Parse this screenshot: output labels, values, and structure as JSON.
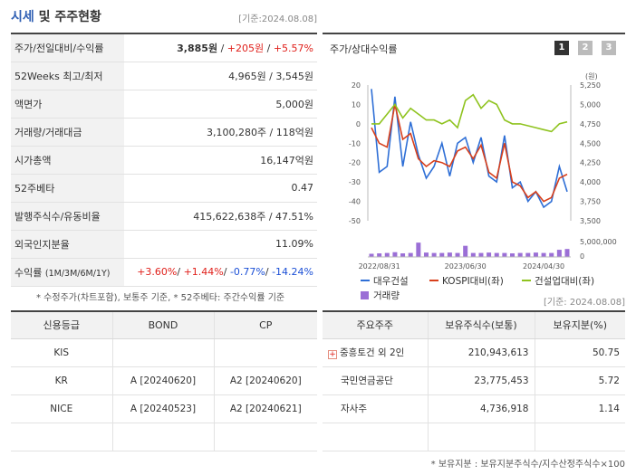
{
  "header": {
    "title_accent": "시세",
    "title_rest": " 및 주주현황",
    "base_date": "[기준:2024.08.08]"
  },
  "quote": {
    "price_label": "주가/전일대비/수익률",
    "price": "3,885원",
    "change": "+205원",
    "change_pct": "+5.57%",
    "w52_label": "52Weeks 최고/최저",
    "w52_value": "4,965원 / 3,545원",
    "par_label": "액면가",
    "par_value": "5,000원",
    "volume_label": "거래량/거래대금",
    "volume_value": "3,100,280주 / 118억원",
    "mcap_label": "시가총액",
    "mcap_value": "16,147억원",
    "beta_label": "52주베타",
    "beta_value": "0.47",
    "shares_label": "발행주식수/유동비율",
    "shares_value": "415,622,638주 / 47.51%",
    "foreign_label": "외국인지분율",
    "foreign_value": "11.09%",
    "return_label": "수익률",
    "return_label_small": "(1M/3M/6M/1Y)",
    "return_1m": "+3.60%",
    "return_3m": "+1.44%",
    "return_6m": "-0.77%",
    "return_1y": "-14.24%",
    "note": "* 수정주가(차트포함), 보통주 기준, * 52주베타: 주간수익률 기준"
  },
  "chart_panel": {
    "title": "주가/상대수익률",
    "buttons": [
      "1",
      "2",
      "3"
    ],
    "active_button": 0
  },
  "chart_data": {
    "type": "line",
    "x_tick_labels": [
      "2022/08/31",
      "2023/06/30",
      "2024/04/30"
    ],
    "left_axis": {
      "ticks": [
        20,
        10,
        0,
        -10,
        -20,
        -30,
        -40,
        -50
      ],
      "ylim": [
        -50,
        20
      ]
    },
    "right_axis": {
      "unit": "(원)",
      "ticks": [
        5250,
        5000,
        4750,
        4500,
        4250,
        4000,
        3750,
        3500
      ],
      "ylim": [
        3500,
        5250
      ]
    },
    "volume_axis": {
      "ticks": [
        "5,000,000",
        "0"
      ]
    },
    "series": [
      {
        "name": "대우건설",
        "color": "#2f6fd6",
        "values": [
          18,
          -25,
          -22,
          14,
          -22,
          1,
          -16,
          -28,
          -22,
          -10,
          -27,
          -10,
          -7,
          -20,
          -7,
          -27,
          -30,
          -6,
          -33,
          -30,
          -40,
          -35,
          -43,
          -40,
          -22,
          -35
        ]
      },
      {
        "name": "KOSPI대비(좌)",
        "color": "#d8401c",
        "values": [
          -2,
          -10,
          -12,
          10,
          -8,
          -5,
          -18,
          -22,
          -19,
          -20,
          -22,
          -14,
          -12,
          -18,
          -11,
          -25,
          -28,
          -10,
          -30,
          -32,
          -38,
          -35,
          -40,
          -38,
          -28,
          -26
        ]
      },
      {
        "name": "건설업대비(좌)",
        "color": "#8fc31f",
        "values": [
          0,
          0,
          5,
          10,
          3,
          8,
          5,
          2,
          2,
          0,
          2,
          -2,
          12,
          15,
          8,
          12,
          10,
          2,
          0,
          0,
          -1,
          -2,
          -3,
          -4,
          0,
          1
        ]
      },
      {
        "name": "거래량",
        "color": "#9b6fd6",
        "type": "bar",
        "values": [
          0.8,
          0.9,
          1.0,
          1.2,
          0.9,
          1.0,
          3.6,
          1.1,
          1.0,
          1.0,
          1.1,
          1.0,
          2.8,
          1.0,
          1.0,
          1.1,
          1.0,
          1.0,
          0.9,
          1.0,
          1.0,
          1.1,
          1.0,
          1.0,
          1.8,
          2.0
        ]
      }
    ]
  },
  "legend": {
    "item1": "대우건설",
    "item2": "KOSPI대비(좌)",
    "item3": "건설업대비(좌)",
    "item4": "거래량"
  },
  "right_base_date": "[기준: 2024.08.08]",
  "credit": {
    "headers": [
      "신용등급",
      "BOND",
      "CP"
    ],
    "rows": [
      [
        "KIS",
        "",
        ""
      ],
      [
        "KR",
        "A  [20240620]",
        "A2  [20240620]"
      ],
      [
        "NICE",
        "A  [20240523]",
        "A2  [20240621]"
      ],
      [
        "",
        "",
        ""
      ]
    ]
  },
  "holders": {
    "headers": [
      "주요주주",
      "보유주식수(보통)",
      "보유지분(%)"
    ],
    "rows": [
      [
        "중흥토건 외 2인",
        "210,943,613",
        "50.75"
      ],
      [
        "국민연금공단",
        "23,775,453",
        "5.72"
      ],
      [
        "자사주",
        "4,736,918",
        "1.14"
      ],
      [
        "",
        "",
        ""
      ]
    ],
    "note": "* 보유지분 : 보유지분주식수/지수산정주식수×100"
  }
}
